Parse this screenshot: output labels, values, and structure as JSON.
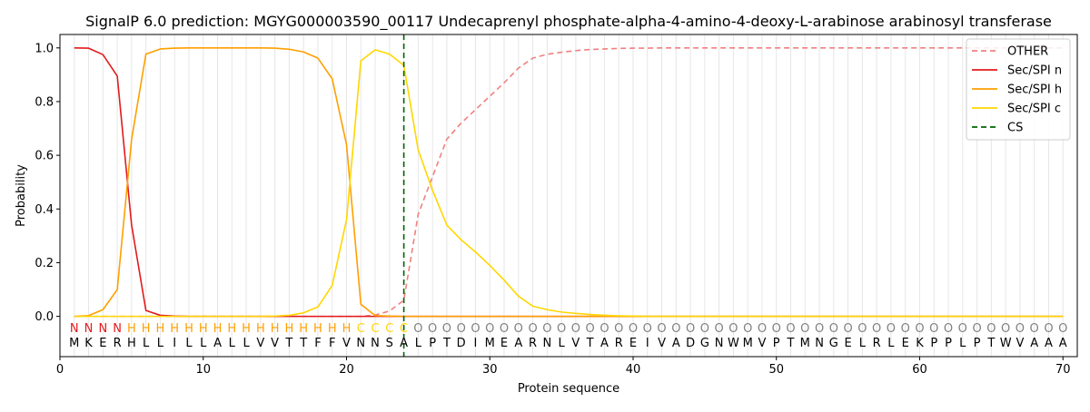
{
  "chart_data": {
    "type": "line",
    "title": "SignalP 6.0 prediction: MGYG000003590_00117 Undecaprenyl phosphate-alpha-4-amino-4-deoxy-L-arabinose arabinosyl transferase",
    "xlabel": "Protein sequence",
    "ylabel": "Probability",
    "xlim": [
      0,
      71
    ],
    "ylim": [
      -0.15,
      1.05
    ],
    "xticks": [
      0,
      10,
      20,
      30,
      40,
      50,
      60,
      70
    ],
    "yticks": [
      0.0,
      0.2,
      0.4,
      0.6,
      0.8,
      1.0
    ],
    "xtick_labels": [
      "0",
      "10",
      "20",
      "30",
      "40",
      "50",
      "60",
      "70"
    ],
    "ytick_labels": [
      "0.0",
      "0.2",
      "0.4",
      "0.6",
      "0.8",
      "1.0"
    ],
    "grid": "vertical lines at each residue position",
    "legend_position": "top-right",
    "sequence": "MKERHLLILLALLVVTTFFVNNSALPTDIMEARNLVTAREIVADGNWMVPTMNGELRLEKPPLPTWVAAA",
    "region_labels": "NNNNHHHHHHHHHHHHHHHHCCCCOOOOOOOOOOOOOOOOOOOOOOOOOOOOOOOOOOOOOOOOOOOOOO",
    "region_colors": {
      "N": "#e31a1c",
      "H": "#ff9f00",
      "C": "#ffd400",
      "O": "#808080"
    },
    "cleavage_site": 24,
    "series": [
      {
        "name": "OTHER",
        "color": "#f08080",
        "dash": "6,4",
        "values": [
          0.0,
          0.0,
          0.0,
          0.0,
          0.0,
          0.0,
          0.0,
          0.0,
          0.0,
          0.0,
          0.0,
          0.0,
          0.0,
          0.0,
          0.0,
          0.0,
          0.0,
          0.0,
          0.0,
          0.0,
          0.0,
          0.005,
          0.02,
          0.06,
          0.38,
          0.52,
          0.66,
          0.72,
          0.77,
          0.82,
          0.87,
          0.925,
          0.962,
          0.976,
          0.984,
          0.99,
          0.994,
          0.996,
          0.998,
          0.999,
          0.999,
          1.0,
          1.0,
          1.0,
          1.0,
          1.0,
          1.0,
          1.0,
          1.0,
          1.0,
          1.0,
          1.0,
          1.0,
          1.0,
          1.0,
          1.0,
          1.0,
          1.0,
          1.0,
          1.0,
          1.0,
          1.0,
          1.0,
          1.0,
          1.0,
          1.0,
          1.0,
          1.0,
          1.0,
          1.0
        ]
      },
      {
        "name": "Sec/SPI n",
        "color": "#e31a1c",
        "dash": "",
        "values": [
          1.0,
          0.999,
          0.975,
          0.895,
          0.34,
          0.022,
          0.004,
          0.001,
          0.0,
          0.0,
          0.0,
          0.0,
          0.0,
          0.0,
          0.0,
          0.0,
          0.0,
          0.0,
          0.0,
          0.0,
          0.0,
          0.0,
          0.0,
          0.0,
          0.0,
          0.0,
          0.0,
          0.0,
          0.0,
          0.0,
          0.0,
          0.0,
          0.0,
          0.0,
          0.0,
          0.0,
          0.0,
          0.0,
          0.0,
          0.0,
          0.0,
          0.0,
          0.0,
          0.0,
          0.0,
          0.0,
          0.0,
          0.0,
          0.0,
          0.0,
          0.0,
          0.0,
          0.0,
          0.0,
          0.0,
          0.0,
          0.0,
          0.0,
          0.0,
          0.0,
          0.0,
          0.0,
          0.0,
          0.0,
          0.0,
          0.0,
          0.0,
          0.0,
          0.0,
          0.0
        ]
      },
      {
        "name": "Sec/SPI h",
        "color": "#ff9f00",
        "dash": "",
        "values": [
          0.0,
          0.003,
          0.025,
          0.1,
          0.66,
          0.977,
          0.996,
          0.999,
          1.0,
          1.0,
          1.0,
          1.0,
          1.0,
          1.0,
          0.999,
          0.995,
          0.985,
          0.962,
          0.885,
          0.64,
          0.045,
          0.003,
          0.001,
          0.0,
          0.0,
          0.0,
          0.0,
          0.0,
          0.0,
          0.0,
          0.0,
          0.0,
          0.0,
          0.0,
          0.0,
          0.0,
          0.0,
          0.0,
          0.0,
          0.0,
          0.0,
          0.0,
          0.0,
          0.0,
          0.0,
          0.0,
          0.0,
          0.0,
          0.0,
          0.0,
          0.0,
          0.0,
          0.0,
          0.0,
          0.0,
          0.0,
          0.0,
          0.0,
          0.0,
          0.0,
          0.0,
          0.0,
          0.0,
          0.0,
          0.0,
          0.0,
          0.0,
          0.0,
          0.0,
          0.0
        ]
      },
      {
        "name": "Sec/SPI c",
        "color": "#ffd700",
        "dash": "",
        "values": [
          0.0,
          0.0,
          0.0,
          0.0,
          0.0,
          0.0,
          0.0,
          0.0,
          0.0,
          0.0,
          0.0,
          0.0,
          0.0,
          0.0,
          0.001,
          0.004,
          0.013,
          0.035,
          0.115,
          0.36,
          0.952,
          0.993,
          0.977,
          0.935,
          0.62,
          0.47,
          0.34,
          0.285,
          0.24,
          0.19,
          0.135,
          0.075,
          0.038,
          0.025,
          0.016,
          0.011,
          0.007,
          0.004,
          0.002,
          0.001,
          0.0,
          0.0,
          0.0,
          0.0,
          0.0,
          0.0,
          0.0,
          0.0,
          0.0,
          0.0,
          0.0,
          0.0,
          0.0,
          0.0,
          0.0,
          0.0,
          0.0,
          0.0,
          0.0,
          0.0,
          0.0,
          0.0,
          0.0,
          0.0,
          0.0,
          0.0,
          0.0,
          0.0,
          0.0,
          0.0
        ]
      }
    ],
    "legend": [
      {
        "label": "OTHER",
        "color": "#f08080",
        "dash": "6,4"
      },
      {
        "label": "Sec/SPI n",
        "color": "#e31a1c",
        "dash": ""
      },
      {
        "label": "Sec/SPI h",
        "color": "#ff9f00",
        "dash": ""
      },
      {
        "label": "Sec/SPI c",
        "color": "#ffd700",
        "dash": ""
      },
      {
        "label": "CS",
        "color": "#006400",
        "dash": "6,4"
      }
    ]
  }
}
